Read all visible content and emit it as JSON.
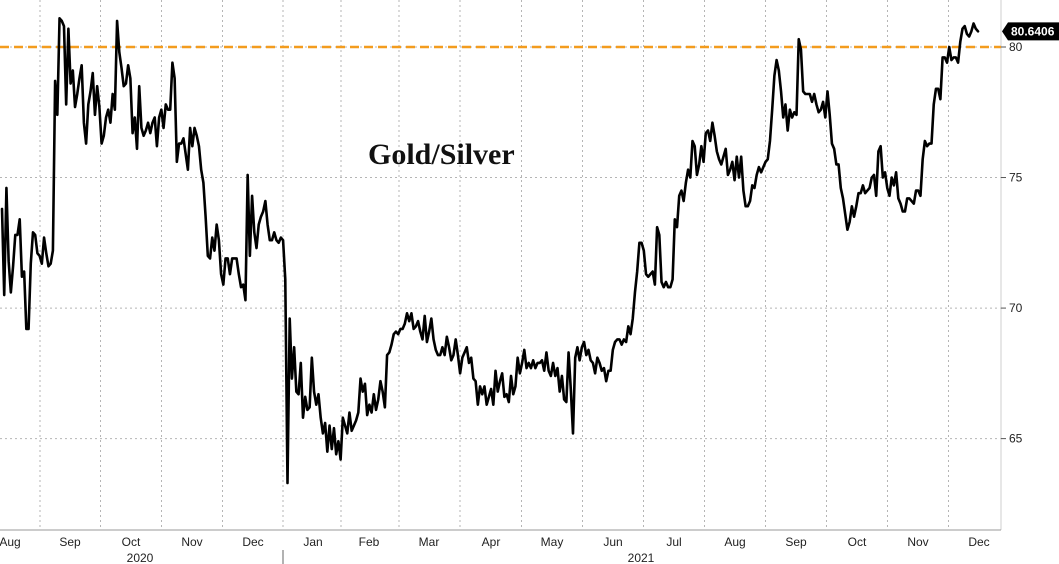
{
  "chart_data": {
    "type": "line",
    "title": "Gold/Silver",
    "xlabel": "",
    "ylabel": "",
    "ylim": [
      61.5,
      81.8
    ],
    "y_ticks": [
      65,
      70,
      75,
      80
    ],
    "month_labels": [
      "Aug",
      "Sep",
      "Oct",
      "Nov",
      "Dec",
      "Jan",
      "Feb",
      "Mar",
      "Apr",
      "May",
      "Jun",
      "Jul",
      "Aug",
      "Sep",
      "Oct",
      "Nov",
      "Dec"
    ],
    "year_labels": [
      "2020",
      "2021"
    ],
    "grid": true,
    "reference_line": {
      "value": 80.0,
      "color": "#F39C1E",
      "style": "dashed"
    },
    "last_value": "80.6406",
    "series_color": "#000000",
    "series": [
      {
        "values": [
          73.8,
          70.5,
          74.6,
          71.8,
          70.6,
          71.6,
          72.8,
          72.8,
          73.4,
          71.2,
          71.4,
          69.2,
          69.2,
          71.7,
          72.9,
          72.8,
          72.1,
          72.0,
          71.7,
          72.7,
          72.1,
          71.6,
          71.7,
          72.2,
          78.7,
          77.4,
          81.1,
          81.0,
          80.8,
          77.8,
          80.7,
          78.6,
          79.1,
          77.7,
          78.2,
          78.8,
          79.3,
          77.1,
          76.3,
          77.8,
          78.3,
          79.0,
          77.4,
          78.5,
          77.7,
          76.3,
          76.6,
          77.3,
          77.6,
          77.1,
          78.2,
          77.6,
          81.0,
          79.8,
          79.2,
          78.5,
          78.6,
          79.3,
          78.8,
          76.7,
          77.3,
          76.1,
          78.5,
          76.9,
          76.6,
          76.8,
          77.1,
          76.7,
          77.1,
          77.3,
          76.2,
          77.3,
          77.6,
          76.9,
          77.8,
          77.6,
          77.6,
          79.4,
          78.8,
          75.6,
          76.3,
          76.3,
          76.5,
          75.9,
          75.3,
          76.9,
          76.2,
          76.9,
          76.6,
          76.2,
          75.3,
          74.8,
          73.5,
          72.0,
          71.9,
          72.7,
          72.2,
          73.2,
          72.6,
          71.3,
          70.9,
          71.9,
          71.9,
          71.3,
          71.9,
          71.9,
          71.9,
          71.3,
          70.8,
          70.9,
          70.3,
          75.1,
          72.0,
          74.3,
          72.9,
          72.3,
          73.2,
          73.5,
          73.7,
          74.1,
          73.2,
          72.6,
          72.6,
          72.9,
          72.6,
          72.5,
          72.7,
          72.6,
          71.1,
          63.3,
          69.6,
          67.3,
          68.5,
          66.8,
          66.7,
          67.9,
          65.8,
          66.6,
          66.1,
          66.2,
          68.1,
          66.8,
          66.3,
          66.7,
          65.8,
          65.2,
          65.6,
          64.5,
          65.5,
          64.6,
          65.4,
          64.4,
          64.9,
          64.2,
          65.8,
          65.5,
          65.2,
          66.0,
          65.3,
          65.5,
          65.7,
          66.0,
          67.3,
          66.8,
          67.1,
          65.9,
          66.3,
          66.0,
          66.7,
          66.1,
          66.5,
          67.2,
          66.8,
          66.2,
          68.2,
          68.3,
          68.6,
          69.0,
          69.1,
          69.0,
          69.2,
          69.2,
          69.4,
          69.8,
          69.5,
          69.8,
          69.2,
          69.3,
          69.5,
          69.1,
          68.8,
          69.7,
          68.7,
          69.1,
          69.6,
          68.8,
          68.4,
          68.2,
          68.2,
          68.5,
          68.2,
          68.9,
          68.5,
          68.0,
          68.2,
          68.8,
          68.2,
          67.5,
          68.1,
          68.3,
          68.5,
          67.9,
          68.1,
          67.3,
          67.2,
          66.3,
          67.0,
          66.7,
          67.0,
          66.3,
          66.6,
          66.9,
          66.3,
          67.6,
          66.8,
          67.2,
          67.5,
          66.6,
          66.7,
          66.4,
          67.4,
          66.7,
          67.0,
          68.1,
          67.5,
          67.9,
          68.4,
          67.7,
          67.9,
          67.7,
          68.0,
          67.7,
          67.9,
          67.9,
          68.0,
          67.6,
          68.3,
          67.6,
          67.4,
          67.9,
          67.4,
          67.7,
          66.8,
          67.4,
          66.5,
          66.4,
          68.3,
          66.9,
          65.2,
          68.1,
          68.5,
          68.0,
          68.5,
          68.7,
          68.2,
          68.4,
          68.0,
          67.9,
          67.5,
          68.1,
          67.9,
          67.6,
          67.7,
          67.2,
          67.6,
          67.6,
          68.4,
          68.7,
          68.8,
          68.8,
          68.6,
          68.8,
          68.7,
          69.3,
          69.0,
          69.6,
          70.6,
          71.4,
          72.5,
          72.5,
          72.2,
          71.3,
          71.2,
          71.3,
          71.4,
          70.9,
          73.1,
          72.8,
          71.0,
          70.8,
          71.0,
          70.8,
          70.8,
          71.1,
          73.4,
          73.1,
          74.3,
          74.5,
          74.1,
          74.8,
          75.3,
          75.0,
          76.4,
          76.2,
          75.1,
          75.5,
          76.2,
          75.6,
          76.7,
          76.8,
          76.4,
          77.1,
          76.6,
          76.0,
          75.7,
          75.5,
          75.8,
          76.1,
          75.1,
          75.3,
          75.6,
          74.9,
          75.8,
          75.0,
          75.8,
          74.5,
          73.9,
          73.9,
          74.1,
          74.7,
          74.6,
          75.1,
          75.4,
          75.2,
          75.4,
          75.6,
          75.7,
          76.4,
          77.6,
          78.9,
          79.5,
          79.1,
          78.3,
          77.3,
          77.8,
          76.8,
          77.6,
          77.3,
          77.5,
          77.4,
          80.3,
          79.9,
          78.3,
          78.2,
          78.2,
          78.2,
          77.9,
          78.2,
          77.8,
          77.5,
          77.6,
          77.9,
          77.3,
          78.3,
          77.4,
          76.3,
          76.1,
          75.5,
          75.5,
          74.6,
          74.2,
          73.6,
          73.0,
          73.3,
          73.9,
          73.5,
          73.9,
          74.4,
          74.4,
          74.7,
          74.4,
          74.5,
          74.6,
          75.0,
          75.1,
          74.3,
          76.0,
          76.2,
          75.0,
          75.2,
          74.6,
          74.3,
          75.0,
          74.7,
          75.2,
          74.2,
          74.0,
          73.7,
          73.7,
          74.2,
          74.2,
          74.1,
          74.0,
          74.5,
          74.5,
          74.3,
          75.7,
          76.4,
          76.2,
          76.3,
          76.3,
          77.8,
          78.4,
          78.4,
          78.0,
          79.6,
          79.6,
          79.4,
          80.0,
          79.5,
          79.6,
          79.6,
          79.4,
          80.2,
          80.7,
          80.8,
          80.5,
          80.4,
          80.6,
          80.9,
          80.7,
          80.6
        ]
      }
    ]
  }
}
